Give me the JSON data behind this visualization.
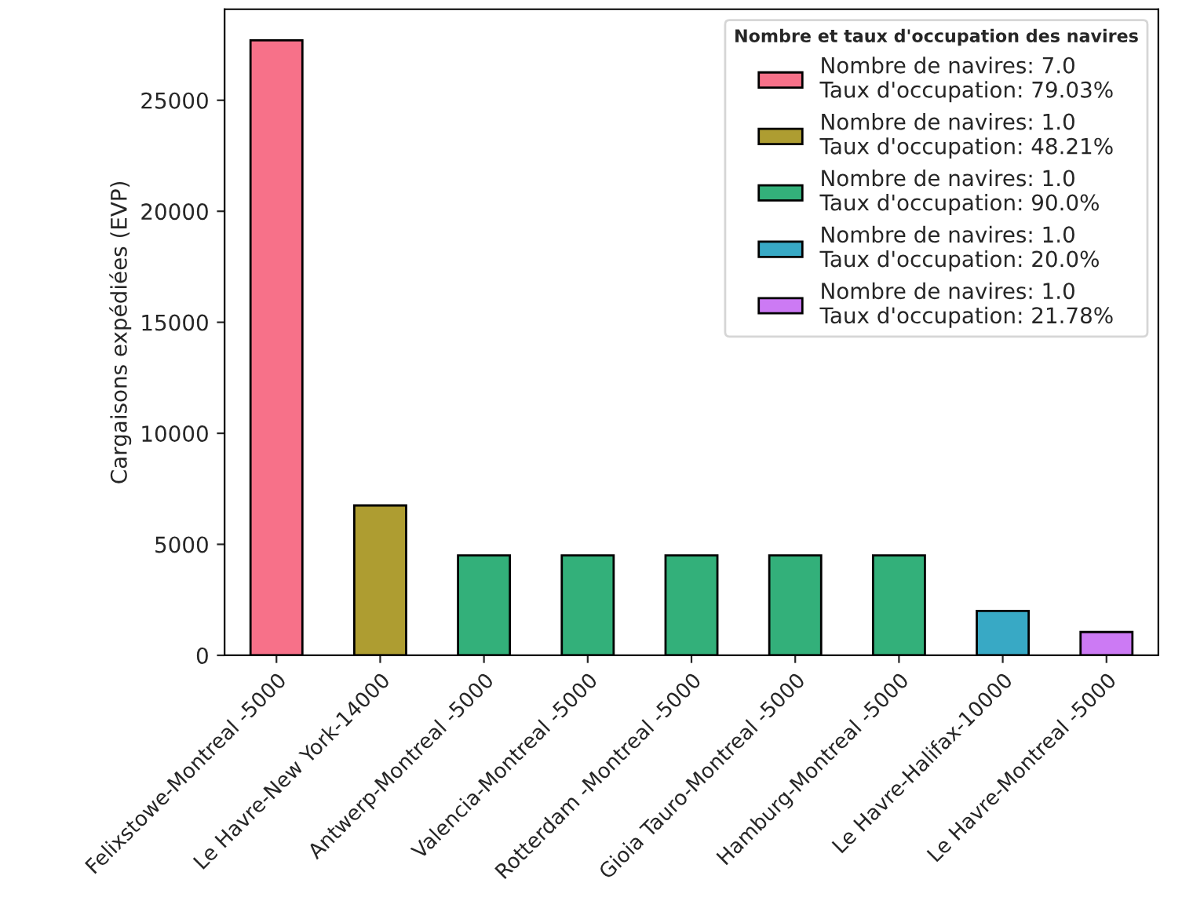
{
  "chart_data": {
    "type": "bar",
    "ylabel": "Cargaisons expédiées (EVP)",
    "categories": [
      "Felixstowe-Montreal -5000",
      "Le Havre-New York-14000",
      "Antwerp-Montreal -5000",
      "Valencia-Montreal -5000",
      "Rotterdam -Montreal -5000",
      "Gioia Tauro-Montreal -5000",
      "Hamburg-Montreal -5000",
      "Le Havre-Halifax-10000",
      "Le Havre-Montreal -5000"
    ],
    "series": [
      {
        "name": "Nombre de navires: 7.0\nTaux d'occupation: 79.03%",
        "color": "#f77189",
        "values": [
          27700,
          null,
          null,
          null,
          null,
          null,
          null,
          null,
          null
        ]
      },
      {
        "name": "Nombre de navires: 1.0\nTaux d'occupation: 48.21%",
        "color": "#ae9d31",
        "values": [
          null,
          6750,
          null,
          null,
          null,
          null,
          null,
          null,
          null
        ]
      },
      {
        "name": "Nombre de navires: 1.0\nTaux d'occupation: 90.0%",
        "color": "#33b07a",
        "values": [
          null,
          null,
          4500,
          4500,
          4500,
          4500,
          4500,
          null,
          null
        ]
      },
      {
        "name": "Nombre de navires: 1.0\nTaux d'occupation: 20.0%",
        "color": "#38a9c5",
        "values": [
          null,
          null,
          null,
          null,
          null,
          null,
          null,
          2000,
          null
        ]
      },
      {
        "name": "Nombre de navires: 1.0\nTaux d'occupation: 21.78%",
        "color": "#cc7af4",
        "values": [
          null,
          null,
          null,
          null,
          null,
          null,
          null,
          null,
          1050
        ]
      }
    ],
    "legend_title": "Nombre et taux d'occupation des navires",
    "legend": "top right",
    "ylim": [
      0,
      29100
    ],
    "yticks": [
      0,
      5000,
      10000,
      15000,
      20000,
      25000
    ],
    "grid": false
  }
}
